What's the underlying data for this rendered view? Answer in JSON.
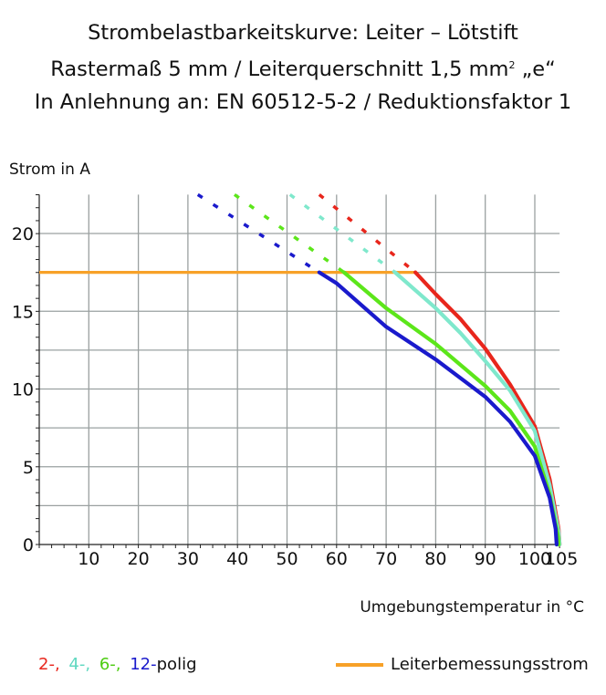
{
  "title": {
    "line1": "Strombelastbarkeitskurve: Leiter – Lötstift",
    "line2_pre": "Rastermaß 5 mm / Leiterquerschnitt 1,5 mm",
    "line2_sup": "2",
    "line2_post": " „e“",
    "line3": "In Anlehnung an: EN 60512-5-2 / Reduktionsfaktor 1"
  },
  "legend": {
    "series_labels": [
      "2-,",
      "4-,",
      "6-,",
      "12-"
    ],
    "suffix": "polig",
    "rated_label": "Leiterbemessungsstrom"
  },
  "chart_data": {
    "type": "line",
    "xlabel": "Umgebungstemperatur in °C",
    "ylabel": "Strom in A",
    "xlim": [
      0,
      105
    ],
    "ylim": [
      0,
      22.5
    ],
    "x_ticks": [
      10,
      20,
      30,
      40,
      50,
      60,
      70,
      80,
      90,
      100,
      105
    ],
    "y_ticks": [
      0,
      5,
      10,
      15,
      20
    ],
    "x_origin_label": "0",
    "grid": true,
    "legend_position": "bottom",
    "rated_current": {
      "value": 17.5,
      "color": "#f7a128"
    },
    "series": [
      {
        "name": "2-",
        "color": "#e8261c",
        "solid": [
          [
            75.9,
            17.5
          ],
          [
            80,
            16.1
          ],
          [
            85,
            14.5
          ],
          [
            90,
            12.6
          ],
          [
            95,
            10.3
          ],
          [
            100,
            7.6
          ],
          [
            103,
            4.2
          ],
          [
            104.8,
            1.0
          ],
          [
            105,
            0
          ]
        ],
        "dashed": [
          [
            56.5,
            22.5
          ],
          [
            75.9,
            17.5
          ]
        ]
      },
      {
        "name": "4-",
        "color": "#7fe8cc",
        "solid": [
          [
            71.8,
            17.5
          ],
          [
            75,
            16.6
          ],
          [
            80,
            15.2
          ],
          [
            85,
            13.6
          ],
          [
            90,
            11.8
          ],
          [
            95,
            9.9
          ],
          [
            100,
            7.3
          ],
          [
            103,
            3.8
          ],
          [
            104.8,
            0.8
          ],
          [
            105,
            0
          ]
        ],
        "dashed": [
          [
            50.6,
            22.5
          ],
          [
            71.8,
            17.5
          ]
        ]
      },
      {
        "name": "6-",
        "color": "#5ce61a",
        "solid": [
          [
            61.5,
            17.5
          ],
          [
            70,
            15.2
          ],
          [
            80,
            12.9
          ],
          [
            90,
            10.2
          ],
          [
            95,
            8.6
          ],
          [
            100,
            6.3
          ],
          [
            103,
            3.2
          ],
          [
            104.7,
            0.5
          ],
          [
            104.8,
            0
          ]
        ],
        "dashed": [
          [
            39.4,
            22.5
          ],
          [
            61.5,
            17.5
          ]
        ]
      },
      {
        "name": "12-",
        "color": "#1a1acc",
        "solid": [
          [
            56.5,
            17.5
          ],
          [
            60,
            16.8
          ],
          [
            70,
            14.0
          ],
          [
            80,
            11.9
          ],
          [
            90,
            9.5
          ],
          [
            95,
            7.9
          ],
          [
            100,
            5.7
          ],
          [
            103,
            3.0
          ],
          [
            104.2,
            1.0
          ],
          [
            104.4,
            0
          ]
        ],
        "dashed": [
          [
            32,
            22.5
          ],
          [
            56.5,
            17.5
          ]
        ]
      }
    ]
  }
}
